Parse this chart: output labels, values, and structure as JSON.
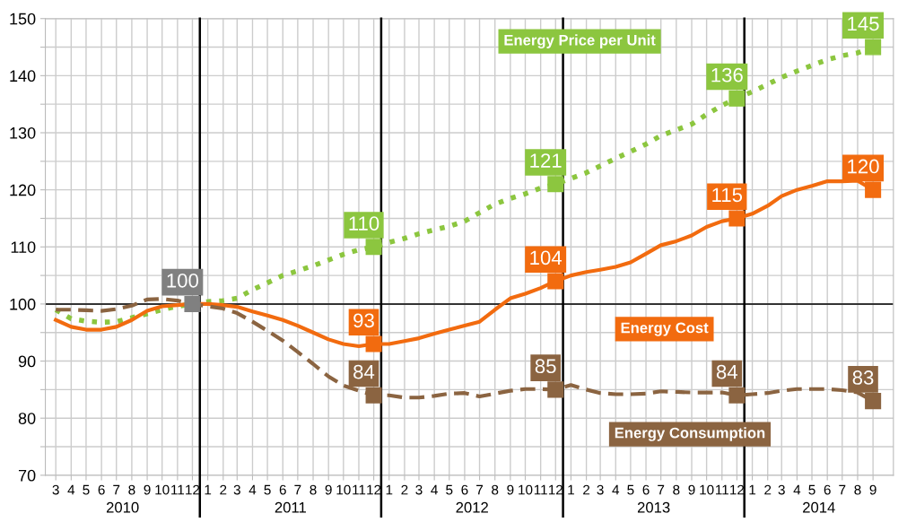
{
  "chart_data": {
    "type": "line",
    "x": [
      "2010-03",
      "2010-04",
      "2010-05",
      "2010-06",
      "2010-07",
      "2010-08",
      "2010-09",
      "2010-10",
      "2010-11",
      "2010-12",
      "2011-01",
      "2011-02",
      "2011-03",
      "2011-04",
      "2011-05",
      "2011-06",
      "2011-07",
      "2011-08",
      "2011-09",
      "2011-10",
      "2011-11",
      "2011-12",
      "2012-01",
      "2012-02",
      "2012-03",
      "2012-04",
      "2012-05",
      "2012-06",
      "2012-07",
      "2012-08",
      "2012-09",
      "2012-10",
      "2012-11",
      "2012-12",
      "2013-01",
      "2013-02",
      "2013-03",
      "2013-04",
      "2013-05",
      "2013-06",
      "2013-07",
      "2013-08",
      "2013-09",
      "2013-10",
      "2013-11",
      "2013-12",
      "2014-01",
      "2014-02",
      "2014-03",
      "2014-04",
      "2014-05",
      "2014-06",
      "2014-07",
      "2014-08",
      "2014-09"
    ],
    "series": [
      {
        "name": "Energy Price per Unit",
        "color": "#8cc63f",
        "line_style": "dotted",
        "values": [
          99,
          97.4,
          97,
          96.8,
          96.9,
          97.6,
          98.3,
          99,
          99.6,
          100,
          100.4,
          100.6,
          101,
          102.5,
          103.7,
          105,
          105.8,
          106.7,
          107.7,
          108.7,
          109.5,
          110,
          110.8,
          111.5,
          112.3,
          113,
          113.6,
          114.5,
          116,
          117.5,
          118.5,
          119.3,
          120.3,
          121,
          122,
          123,
          124.2,
          125.5,
          126.7,
          128,
          129.5,
          130.5,
          131.5,
          133.2,
          134.8,
          136,
          137.2,
          138.5,
          139.7,
          140.8,
          141.8,
          142.8,
          143.5,
          144,
          145
        ],
        "value_labels": [
          null,
          null,
          null,
          null,
          null,
          null,
          null,
          null,
          null,
          null,
          null,
          null,
          null,
          null,
          null,
          null,
          null,
          null,
          null,
          null,
          null,
          "110",
          null,
          null,
          null,
          null,
          null,
          null,
          null,
          null,
          null,
          null,
          null,
          "121",
          null,
          null,
          null,
          null,
          null,
          null,
          null,
          null,
          null,
          null,
          null,
          "136",
          null,
          null,
          null,
          null,
          null,
          null,
          null,
          null,
          "145"
        ]
      },
      {
        "name": "Energy Cost",
        "color": "#f26b0f",
        "line_style": "solid",
        "values": [
          97.2,
          96,
          95.5,
          95.5,
          96,
          97.2,
          98.8,
          99.6,
          99.8,
          100,
          100,
          99.8,
          99.5,
          98.7,
          98,
          97.2,
          96.2,
          95,
          93.8,
          93,
          92.6,
          93,
          93,
          93.5,
          94,
          94.8,
          95.5,
          96.2,
          96.9,
          99,
          101,
          101.8,
          102.8,
          104,
          105,
          105.6,
          106,
          106.5,
          107.3,
          108.8,
          110.3,
          111,
          112,
          113.5,
          114.5,
          115,
          115.8,
          117.2,
          118.9,
          120,
          120.7,
          121.5,
          121.5,
          121.6,
          120
        ],
        "value_labels": [
          null,
          null,
          null,
          null,
          null,
          null,
          null,
          null,
          null,
          null,
          null,
          null,
          null,
          null,
          null,
          null,
          null,
          null,
          null,
          null,
          null,
          "93",
          null,
          null,
          null,
          null,
          null,
          null,
          null,
          null,
          null,
          null,
          null,
          "104",
          null,
          null,
          null,
          null,
          null,
          null,
          null,
          null,
          null,
          null,
          null,
          "115",
          null,
          null,
          null,
          null,
          null,
          null,
          null,
          null,
          "120"
        ]
      },
      {
        "name": "Energy Consumption",
        "color": "#8b6441",
        "line_style": "dashed",
        "values": [
          99,
          99,
          98.9,
          98.8,
          99.1,
          99.7,
          100.8,
          100.9,
          100.6,
          100,
          99.6,
          99.2,
          98.4,
          96.9,
          95.3,
          93.6,
          91.6,
          89.5,
          87.3,
          85.7,
          84.8,
          84,
          84,
          83.6,
          83.6,
          83.9,
          84.3,
          84.4,
          83.8,
          84.3,
          84.8,
          85.1,
          85.1,
          85,
          85.8,
          85,
          84.4,
          84.2,
          84.2,
          84.3,
          84.7,
          84.6,
          84.5,
          84.5,
          84.5,
          84,
          84.2,
          84.4,
          84.8,
          85.1,
          85.1,
          85.1,
          84.9,
          84.5,
          83
        ],
        "value_labels": [
          null,
          null,
          null,
          null,
          null,
          null,
          null,
          null,
          null,
          null,
          null,
          null,
          null,
          null,
          null,
          null,
          null,
          null,
          null,
          null,
          null,
          "84",
          null,
          null,
          null,
          null,
          null,
          null,
          null,
          null,
          null,
          null,
          null,
          "85",
          null,
          null,
          null,
          null,
          null,
          null,
          null,
          null,
          null,
          null,
          null,
          "84",
          null,
          null,
          null,
          null,
          null,
          null,
          null,
          null,
          "83"
        ]
      }
    ],
    "ylim": [
      70,
      150
    ],
    "yticks": [
      70,
      {
        "value": 75,
        "label": null
      },
      80,
      {
        "value": 85,
        "label": null
      },
      90,
      {
        "value": 95,
        "label": null
      },
      100,
      {
        "value": 105,
        "label": null
      },
      110,
      {
        "value": 115,
        "label": null
      },
      120,
      {
        "value": 125,
        "label": null
      },
      130,
      {
        "value": 135,
        "label": null
      },
      140,
      {
        "value": 145,
        "label": null
      },
      150
    ],
    "xlim": [
      "2010-02-08",
      "2014-10-12"
    ],
    "xticks": [
      {
        "value": "2010-03",
        "label": "3"
      },
      {
        "value": "2010-04",
        "label": "4"
      },
      {
        "value": "2010-05",
        "label": "5"
      },
      {
        "value": "2010-06",
        "label": "6"
      },
      {
        "value": "2010-07",
        "label": "7"
      },
      {
        "value": "2010-08",
        "label": "8"
      },
      {
        "value": "2010-09",
        "label": "9"
      },
      {
        "value": "2010-10",
        "label": "10"
      },
      {
        "value": "2010-11",
        "label": "11"
      },
      {
        "value": "2010-12",
        "label": "12"
      },
      {
        "value": "2011-01",
        "label": "1"
      },
      {
        "value": "2011-02",
        "label": "2"
      },
      {
        "value": "2011-03",
        "label": "3"
      },
      {
        "value": "2011-04",
        "label": "4"
      },
      {
        "value": "2011-05",
        "label": "5"
      },
      {
        "value": "2011-06",
        "label": "6"
      },
      {
        "value": "2011-07",
        "label": "7"
      },
      {
        "value": "2011-08",
        "label": "8"
      },
      {
        "value": "2011-09",
        "label": "9"
      },
      {
        "value": "2011-10",
        "label": "10"
      },
      {
        "value": "2011-11",
        "label": "11"
      },
      {
        "value": "2011-12",
        "label": "12"
      },
      {
        "value": "2012-01",
        "label": "1"
      },
      {
        "value": "2012-02",
        "label": "2"
      },
      {
        "value": "2012-03",
        "label": "3"
      },
      {
        "value": "2012-04",
        "label": "4"
      },
      {
        "value": "2012-05",
        "label": "5"
      },
      {
        "value": "2012-06",
        "label": "6"
      },
      {
        "value": "2012-07",
        "label": "7"
      },
      {
        "value": "2012-08",
        "label": "8"
      },
      {
        "value": "2012-09",
        "label": "9"
      },
      {
        "value": "2012-10",
        "label": "10"
      },
      {
        "value": "2012-11",
        "label": "11"
      },
      {
        "value": "2012-12",
        "label": "12"
      },
      {
        "value": "2013-01",
        "label": "1"
      },
      {
        "value": "2013-02",
        "label": "2"
      },
      {
        "value": "2013-03",
        "label": "3"
      },
      {
        "value": "2013-04",
        "label": "4"
      },
      {
        "value": "2013-05",
        "label": "5"
      },
      {
        "value": "2013-06",
        "label": "6"
      },
      {
        "value": "2013-07",
        "label": "7"
      },
      {
        "value": "2013-08",
        "label": "8"
      },
      {
        "value": "2013-09",
        "label": "9"
      },
      {
        "value": "2013-10",
        "label": "10"
      },
      {
        "value": "2013-11",
        "label": "11"
      },
      {
        "value": "2013-12",
        "label": "12"
      },
      {
        "value": "2014-01",
        "label": "1"
      },
      {
        "value": "2014-02",
        "label": "2"
      },
      {
        "value": "2014-03",
        "label": "3"
      },
      {
        "value": "2014-04",
        "label": "4"
      },
      {
        "value": "2014-05",
        "label": "5"
      },
      {
        "value": "2014-06",
        "label": "6"
      },
      {
        "value": "2014-07",
        "label": "7"
      },
      {
        "value": "2014-08",
        "label": "8"
      },
      {
        "value": "2014-09",
        "label": "9"
      }
    ],
    "grid": true,
    "ref_lines": [
      {
        "axis": "y",
        "value": 100,
        "color": "#333333"
      },
      {
        "axis": "x",
        "value": "2010-12-16",
        "color": "#000000"
      },
      {
        "axis": "x",
        "value": "2011-12-16",
        "color": "#000000"
      },
      {
        "axis": "x",
        "value": "2012-12-16",
        "color": "#000000"
      },
      {
        "axis": "x",
        "value": "2013-12-16",
        "color": "#000000"
      }
    ],
    "annotations": [
      {
        "text": "100",
        "x": "2010-12",
        "y": 100
      },
      "2010",
      "2011",
      "2012",
      "2013",
      "2014"
    ]
  }
}
